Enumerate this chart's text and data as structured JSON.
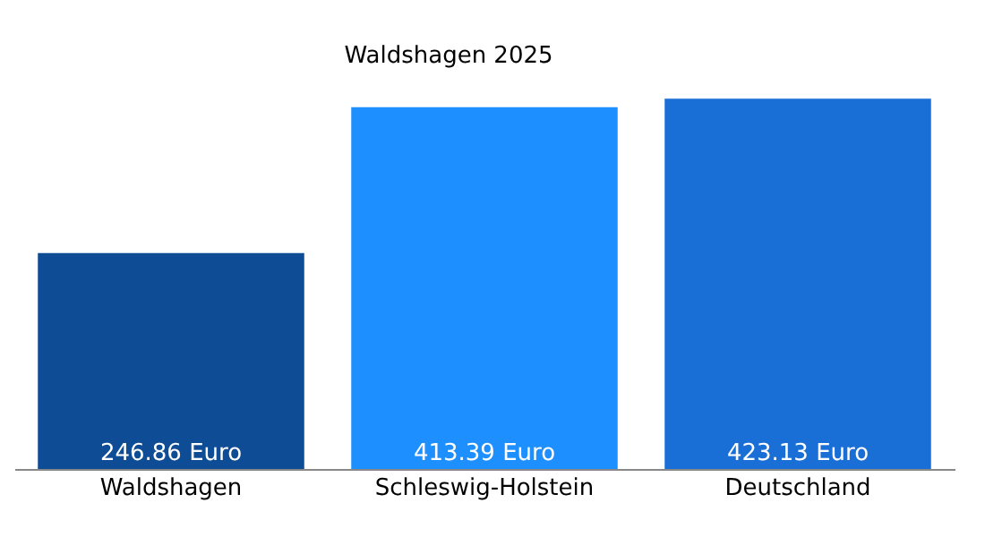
{
  "chart_data": {
    "type": "bar",
    "title": "Waldshagen 2025",
    "categories": [
      "Waldshagen",
      "Schleswig-Holstein",
      "Deutschland"
    ],
    "values": [
      246.86,
      413.39,
      423.13
    ],
    "colors": [
      "#0e4c96",
      "#1e8fff",
      "#1a6fd6"
    ],
    "value_labels": [
      "246.86 Euro",
      "413.39 Euro",
      "423.13 Euro"
    ],
    "grid": false
  }
}
